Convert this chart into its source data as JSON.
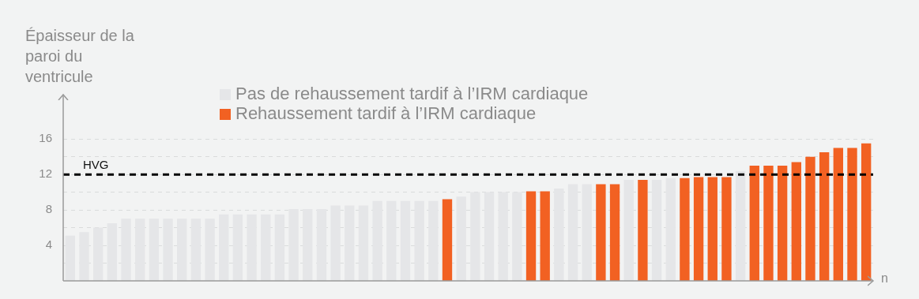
{
  "chart_data": {
    "type": "bar",
    "ylabel": "Épaisseur de la paroi du ventricule",
    "xlabel": "n",
    "categories": [
      null,
      null,
      null,
      null,
      null,
      null,
      null,
      null,
      null,
      null,
      null,
      null,
      null,
      null,
      null,
      null,
      null,
      null,
      null,
      null,
      null,
      null,
      null,
      null,
      null,
      null,
      null,
      null,
      null,
      null,
      null,
      null,
      null,
      null,
      null,
      null,
      null,
      null,
      null,
      null,
      null,
      null,
      null,
      null,
      null,
      null,
      null,
      null,
      null,
      null,
      null,
      null,
      null,
      null,
      null,
      null,
      null,
      null
    ],
    "series": [
      {
        "name": "Pas de rehaussement tardif à l’IRM cardiaque",
        "color": "#e5e6e8",
        "values": [
          5.1,
          5.5,
          6.0,
          6.5,
          7.0,
          7.0,
          7.0,
          7.0,
          7.0,
          7.0,
          7.0,
          7.5,
          7.5,
          7.5,
          7.5,
          7.5,
          8.1,
          8.1,
          8.1,
          8.5,
          8.5,
          8.5,
          9.0,
          9.0,
          9.0,
          9.0,
          9.0,
          null,
          9.5,
          10.0,
          10.0,
          10.0,
          10.0,
          null,
          null,
          10.4,
          10.9,
          10.9,
          null,
          null,
          11.4,
          null,
          11.4,
          11.6,
          null,
          null,
          null,
          null,
          12.4,
          null,
          null,
          null,
          null,
          null,
          null,
          null,
          null,
          null
        ]
      },
      {
        "name": "Rehaussement tardif à l’IRM cardiaque",
        "color": "#f26122",
        "values": [
          null,
          null,
          null,
          null,
          null,
          null,
          null,
          null,
          null,
          null,
          null,
          null,
          null,
          null,
          null,
          null,
          null,
          null,
          null,
          null,
          null,
          null,
          null,
          null,
          null,
          null,
          null,
          9.2,
          null,
          null,
          null,
          null,
          null,
          10.1,
          10.1,
          null,
          null,
          null,
          10.9,
          10.9,
          null,
          11.4,
          null,
          null,
          11.6,
          11.7,
          11.7,
          11.7,
          null,
          13.0,
          13.0,
          13.0,
          13.4,
          14.0,
          14.5,
          15.0,
          15.0,
          15.5
        ]
      }
    ],
    "ylim": [
      0,
      21
    ],
    "yticks": [
      {
        "value": 2,
        "label": null
      },
      4,
      {
        "value": 6,
        "label": null
      },
      8,
      {
        "value": 10,
        "label": null
      },
      12,
      {
        "value": 14,
        "label": null
      },
      16
    ],
    "ref_lines": [
      {
        "axis": "y",
        "value": 12,
        "label": "HVG",
        "color": "#000000",
        "line_style": "dashed"
      }
    ],
    "grid": "y",
    "legend": "top"
  }
}
